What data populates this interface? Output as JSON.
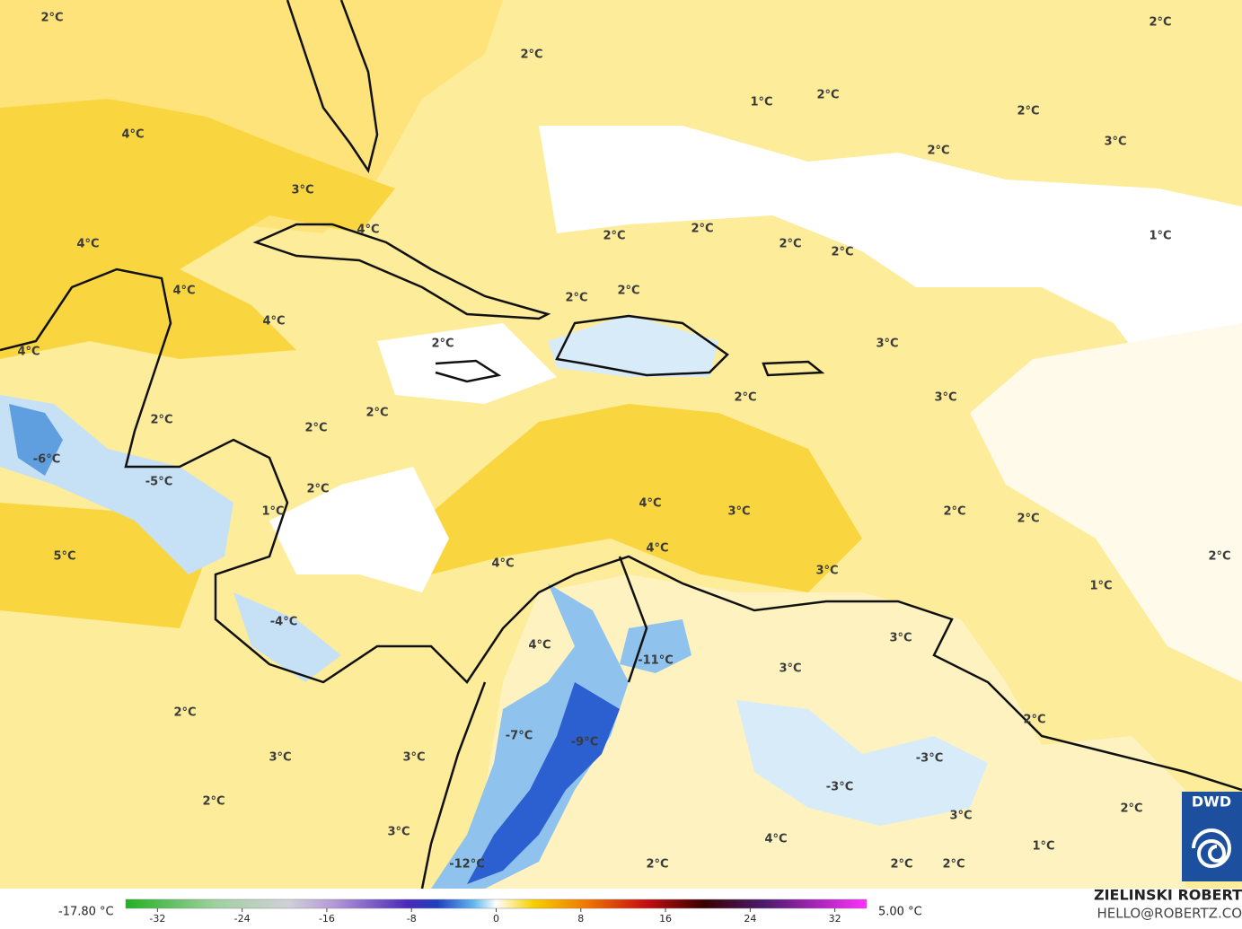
{
  "map": {
    "labels": [
      "2°C",
      "2°C",
      "2°C",
      "1°C",
      "2°C",
      "2°C",
      "4°C",
      "2°C",
      "3°C",
      "3°C",
      "2°C",
      "2°C",
      "2°C",
      "2°C",
      "1°C",
      "4°C",
      "4°C",
      "4°C",
      "4°C",
      "2°C",
      "2°C",
      "2°C",
      "3°C",
      "4°C",
      "3°C",
      "2°C",
      "2°C",
      "2°C",
      "2°C",
      "-6°C",
      "-5°C",
      "2°C",
      "1°C",
      "4°C",
      "3°C",
      "2°C",
      "2°C",
      "5°C",
      "4°C",
      "4°C",
      "3°C",
      "2°C",
      "1°C",
      "-4°C",
      "4°C",
      "-11°C",
      "3°C",
      "3°C",
      "2°C",
      "2°C",
      "-7°C",
      "-9°C",
      "3°C",
      "3°C",
      "-3°C",
      "-3°C",
      "2°C",
      "3°C",
      "2°C",
      "3°C",
      "4°C",
      "1°C",
      "-12°C",
      "2°C",
      "2°C",
      "2°C"
    ]
  },
  "colorbar": {
    "min_label": "-17.80 °C",
    "max_label": "5.00 °C",
    "range": [
      -35,
      35
    ],
    "ticks": [
      -32,
      -24,
      -16,
      -8,
      0,
      8,
      16,
      24,
      32
    ]
  },
  "credit": {
    "name": "ZIELINSKI ROBERT",
    "email": "HELLO@ROBERTZ.CO",
    "logo": "DWD"
  }
}
